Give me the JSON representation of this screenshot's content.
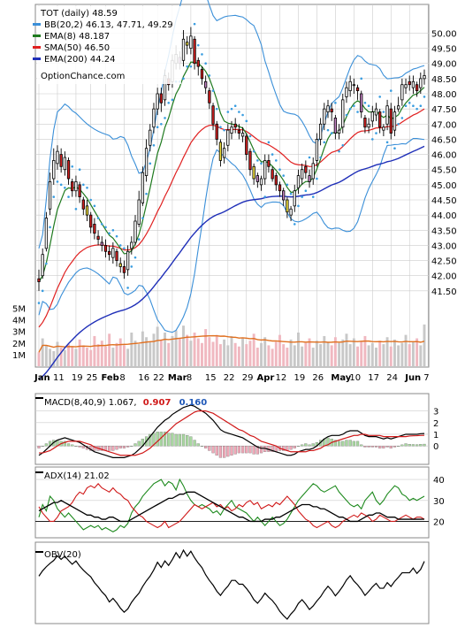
{
  "colors": {
    "bb": "#3a8fd8",
    "ema8": "#1e7a1e",
    "sma50": "#e02020",
    "ema200": "#1f2fb8",
    "sar": "#3a9de0",
    "volume_up": "#c8c8c8",
    "volume_down": "#f0b8c0",
    "volume_avg": "#e07020",
    "candle_up_wick": "#000000",
    "grid": "#cccccc",
    "macd_line": "#000000",
    "macd_signal": "#d01818",
    "macd_hist_pos": "#a8d8a0",
    "macd_hist_neg": "#f0a8b8",
    "adx": "#000000",
    "plus_di": "#1e8a1e",
    "minus_di": "#d01818",
    "obv": "#000000"
  },
  "legend": {
    "title": "TOT (daily) 48.59",
    "bb": "BB(20,2) 46.13, 47.71, 49.29",
    "ema8": "EMA(8) 48.187",
    "sma50": "SMA(50) 46.50",
    "ema200": "EMA(200) 44.24",
    "site": "OptionChance.com"
  },
  "panels": {
    "macd": {
      "label": "MACD(8,40,9) 1.067,",
      "val1": "0.907",
      "val2": "0.160",
      "ticks": [
        "3",
        "2",
        "1",
        "0"
      ],
      "tick_values": [
        3,
        2,
        1,
        0
      ]
    },
    "adx": {
      "label": "ADX(14) 21.02",
      "ticks": [
        "40",
        "30",
        "20"
      ],
      "tick_values": [
        40,
        30,
        20
      ]
    },
    "obv": {
      "label": "OBV(20)"
    }
  },
  "chart_data": {
    "type": "candlestick",
    "title": "TOT (daily) 48.59",
    "price_ylim": [
      41.0,
      50.45
    ],
    "price_ticks": [
      50.0,
      49.5,
      49.0,
      48.5,
      48.0,
      47.5,
      47.0,
      46.5,
      46.0,
      45.5,
      45.0,
      44.5,
      44.0,
      43.5,
      43.0,
      42.5,
      42.0,
      41.5
    ],
    "price_tick_labels": [
      "50.00",
      "49.50",
      "49.00",
      "48.50",
      "48.00",
      "47.50",
      "47.00",
      "46.50",
      "46.00",
      "45.50",
      "45.00",
      "44.50",
      "44.00",
      "43.50",
      "43.00",
      "42.50",
      "42.00",
      "41.50"
    ],
    "volume_tick_labels": [
      "5M",
      "4M",
      "3M",
      "2M",
      "1M"
    ],
    "volume_tick_values": [
      5,
      4,
      3,
      2,
      1
    ],
    "volume_max_millions": 5.8,
    "x_tick_labels": [
      "Jan",
      "11",
      "19",
      "25",
      "Feb",
      "8",
      "16",
      "22",
      "Mar",
      "8",
      "15",
      "22",
      "29",
      "Apr",
      "12",
      "19",
      "26",
      "May",
      "10",
      "17",
      "24",
      "Jun",
      "7"
    ],
    "x_tick_index": [
      0,
      5,
      10,
      14,
      18,
      23,
      28,
      32,
      36,
      41,
      46,
      51,
      56,
      60,
      65,
      70,
      75,
      80,
      85,
      90,
      95,
      100,
      105
    ],
    "close": [
      41.8,
      42.7,
      43.9,
      45.1,
      45.8,
      46.1,
      45.6,
      45.9,
      45.2,
      44.8,
      45.1,
      44.6,
      44.2,
      44.0,
      43.6,
      43.4,
      43.2,
      43.0,
      42.8,
      42.7,
      42.9,
      42.5,
      42.3,
      42.1,
      42.8,
      43.1,
      43.8,
      44.5,
      45.4,
      46.2,
      46.8,
      47.5,
      48.0,
      47.7,
      48.6,
      48.3,
      49.1,
      49.3,
      49.0,
      49.8,
      49.6,
      49.9,
      49.0,
      48.9,
      48.5,
      48.2,
      47.7,
      47.0,
      46.5,
      45.8,
      46.2,
      46.8,
      46.9,
      46.9,
      46.7,
      46.7,
      46.0,
      45.5,
      45.2,
      45.1,
      45.2,
      45.8,
      45.6,
      45.2,
      45.0,
      44.8,
      44.5,
      44.1,
      44.2,
      44.8,
      45.3,
      45.5,
      45.4,
      45.1,
      45.7,
      46.5,
      47.0,
      47.5,
      47.6,
      47.4,
      46.7,
      46.8,
      47.8,
      48.2,
      48.4,
      48.3,
      48.1,
      47.4,
      46.9,
      47.0,
      47.4,
      47.5,
      46.9,
      46.9,
      47.6,
      46.7,
      47.4,
      47.6,
      48.3,
      48.3,
      48.3,
      48.4,
      48.1,
      48.5,
      48.6
    ],
    "open": [
      41.9,
      42.0,
      42.9,
      44.2,
      45.2,
      45.7,
      46.0,
      45.5,
      45.8,
      45.1,
      44.8,
      45.0,
      44.5,
      44.3,
      44.0,
      43.7,
      43.3,
      43.1,
      43.0,
      42.8,
      42.6,
      42.8,
      42.4,
      42.3,
      42.2,
      42.9,
      43.1,
      43.7,
      44.4,
      45.3,
      46.3,
      46.9,
      47.5,
      48.0,
      47.8,
      48.5,
      48.4,
      49.0,
      49.2,
      49.1,
      49.7,
      49.5,
      49.8,
      49.1,
      48.8,
      48.4,
      48.1,
      47.6,
      47.0,
      46.4,
      45.9,
      46.3,
      46.7,
      47.0,
      46.8,
      46.6,
      46.6,
      46.1,
      45.6,
      45.3,
      45.0,
      45.2,
      45.8,
      45.5,
      45.3,
      45.0,
      44.8,
      44.5,
      44.0,
      44.3,
      44.9,
      45.2,
      45.6,
      45.3,
      45.2,
      45.8,
      46.5,
      47.0,
      47.4,
      47.5,
      47.2,
      46.7,
      46.9,
      47.9,
      48.1,
      48.3,
      48.2,
      48.0,
      47.2,
      46.9,
      47.1,
      47.3,
      47.4,
      46.8,
      47.0,
      47.5,
      46.8,
      47.5,
      47.8,
      48.2,
      48.4,
      48.2,
      48.3,
      48.2,
      48.5
    ],
    "high": [
      42.2,
      42.9,
      44.1,
      45.4,
      46.2,
      46.3,
      46.2,
      46.1,
      45.9,
      45.2,
      45.3,
      45.1,
      44.6,
      44.5,
      44.1,
      43.9,
      43.5,
      43.3,
      43.2,
      43.0,
      43.1,
      42.9,
      42.6,
      42.5,
      43.0,
      43.3,
      44.0,
      44.8,
      45.6,
      46.5,
      47.0,
      47.7,
      48.2,
      48.2,
      48.8,
      48.7,
      49.3,
      49.6,
      49.4,
      50.1,
      49.9,
      50.2,
      49.9,
      49.2,
      48.9,
      48.6,
      48.2,
      47.7,
      47.1,
      46.5,
      46.4,
      47.0,
      47.1,
      47.2,
      47.0,
      46.9,
      46.7,
      46.2,
      45.7,
      45.4,
      45.3,
      46.0,
      46.0,
      45.6,
      45.4,
      45.1,
      44.9,
      44.6,
      44.3,
      45.0,
      45.5,
      45.7,
      45.8,
      45.5,
      45.9,
      46.7,
      47.2,
      47.7,
      47.8,
      47.7,
      47.3,
      47.0,
      48.0,
      48.4,
      48.6,
      48.5,
      48.3,
      48.1,
      47.3,
      47.2,
      47.6,
      47.7,
      47.5,
      47.0,
      47.8,
      47.7,
      47.6,
      47.9,
      48.5,
      48.5,
      48.6,
      48.6,
      48.4,
      48.7,
      48.8
    ],
    "low": [
      41.5,
      41.9,
      42.8,
      44.0,
      45.0,
      45.5,
      45.4,
      45.3,
      45.0,
      44.6,
      44.6,
      44.4,
      44.0,
      43.8,
      43.4,
      43.2,
      43.0,
      42.8,
      42.6,
      42.5,
      42.4,
      42.3,
      42.1,
      41.9,
      42.0,
      42.7,
      43.0,
      43.6,
      44.3,
      45.1,
      46.1,
      46.7,
      47.3,
      47.4,
      47.6,
      48.1,
      48.2,
      48.8,
      48.8,
      48.9,
      49.3,
      49.3,
      48.8,
      48.6,
      48.3,
      48.0,
      47.5,
      46.8,
      46.3,
      45.6,
      45.7,
      46.1,
      46.5,
      46.7,
      46.5,
      46.4,
      45.8,
      45.3,
      45.0,
      44.9,
      44.8,
      45.0,
      45.4,
      45.1,
      44.8,
      44.6,
      44.3,
      43.9,
      43.8,
      44.1,
      44.7,
      45.0,
      45.2,
      44.9,
      45.0,
      45.6,
      46.3,
      46.8,
      47.2,
      47.1,
      46.5,
      46.5,
      46.7,
      47.7,
      47.9,
      48.0,
      47.8,
      47.2,
      46.7,
      46.7,
      46.9,
      47.1,
      46.7,
      46.6,
      46.8,
      46.5,
      46.6,
      47.4,
      47.6,
      48.0,
      48.1,
      48.0,
      47.9,
      48.0,
      48.3
    ],
    "volume_millions": [
      1.2,
      2.4,
      1.8,
      1.5,
      1.3,
      2.1,
      1.6,
      1.4,
      1.9,
      1.7,
      1.5,
      2.3,
      1.8,
      1.6,
      1.4,
      2.6,
      1.9,
      2.2,
      1.7,
      2.8,
      1.6,
      2.0,
      2.4,
      1.8,
      1.5,
      2.9,
      2.2,
      1.9,
      3.0,
      2.5,
      2.1,
      2.8,
      3.4,
      2.3,
      2.9,
      2.0,
      2.6,
      3.1,
      2.4,
      3.5,
      2.7,
      2.2,
      2.9,
      2.4,
      2.0,
      3.2,
      2.5,
      2.1,
      2.7,
      1.9,
      2.3,
      1.8,
      2.6,
      2.0,
      1.7,
      2.4,
      1.9,
      2.2,
      2.8,
      1.6,
      2.0,
      2.5,
      1.8,
      1.5,
      2.1,
      2.7,
      1.9,
      1.6,
      2.3,
      1.8,
      2.9,
      1.7,
      2.0,
      2.4,
      1.6,
      2.2,
      1.9,
      2.6,
      2.1,
      1.8,
      2.5,
      2.0,
      2.3,
      2.8,
      1.9,
      2.4,
      1.7,
      2.1,
      2.6,
      1.8,
      2.0,
      1.6,
      2.2,
      1.9,
      2.5,
      1.7,
      2.3,
      1.8,
      2.0,
      2.7,
      1.9,
      2.1,
      2.4,
      1.8,
      3.6
    ],
    "macd": [
      -0.8,
      -0.6,
      -0.3,
      0.0,
      0.3,
      0.5,
      0.6,
      0.7,
      0.6,
      0.5,
      0.4,
      0.3,
      0.1,
      -0.1,
      -0.3,
      -0.5,
      -0.6,
      -0.7,
      -0.8,
      -0.9,
      -1.0,
      -1.0,
      -1.0,
      -1.0,
      -0.9,
      -0.8,
      -0.6,
      -0.3,
      0.0,
      0.4,
      0.8,
      1.2,
      1.6,
      1.9,
      2.2,
      2.4,
      2.7,
      2.9,
      3.1,
      3.3,
      3.4,
      3.5,
      3.4,
      3.2,
      3.0,
      2.8,
      2.5,
      2.2,
      1.8,
      1.4,
      1.2,
      1.1,
      1.0,
      0.9,
      0.8,
      0.7,
      0.5,
      0.3,
      0.1,
      -0.1,
      -0.2,
      -0.2,
      -0.3,
      -0.4,
      -0.5,
      -0.6,
      -0.7,
      -0.8,
      -0.8,
      -0.7,
      -0.5,
      -0.4,
      -0.3,
      -0.3,
      -0.2,
      0.0,
      0.3,
      0.6,
      0.8,
      0.9,
      0.9,
      0.9,
      1.0,
      1.2,
      1.3,
      1.3,
      1.3,
      1.1,
      0.9,
      0.8,
      0.8,
      0.8,
      0.7,
      0.6,
      0.7,
      0.6,
      0.7,
      0.8,
      0.9,
      1.0,
      1.0,
      1.0,
      1.0,
      1.05,
      1.067
    ],
    "macd_signal": [
      -0.6,
      -0.6,
      -0.5,
      -0.4,
      -0.2,
      0.0,
      0.2,
      0.3,
      0.4,
      0.4,
      0.4,
      0.4,
      0.3,
      0.2,
      0.1,
      -0.1,
      -0.2,
      -0.3,
      -0.4,
      -0.5,
      -0.6,
      -0.7,
      -0.8,
      -0.8,
      -0.8,
      -0.8,
      -0.8,
      -0.7,
      -0.6,
      -0.4,
      -0.2,
      0.1,
      0.4,
      0.7,
      1.0,
      1.3,
      1.6,
      1.9,
      2.1,
      2.3,
      2.5,
      2.7,
      2.9,
      3.0,
      3.0,
      3.0,
      2.9,
      2.8,
      2.6,
      2.4,
      2.2,
      2.0,
      1.8,
      1.6,
      1.4,
      1.3,
      1.1,
      0.9,
      0.8,
      0.6,
      0.4,
      0.3,
      0.2,
      0.1,
      0.0,
      -0.2,
      -0.3,
      -0.4,
      -0.5,
      -0.5,
      -0.5,
      -0.5,
      -0.5,
      -0.4,
      -0.4,
      -0.3,
      -0.2,
      0.0,
      0.1,
      0.3,
      0.4,
      0.5,
      0.6,
      0.7,
      0.8,
      0.9,
      0.9,
      1.0,
      1.0,
      0.9,
      0.9,
      0.9,
      0.9,
      0.8,
      0.8,
      0.8,
      0.8,
      0.8,
      0.8,
      0.8,
      0.85,
      0.87,
      0.88,
      0.9,
      0.907
    ],
    "adx": [
      25,
      26,
      27,
      28,
      29,
      29,
      30,
      29,
      28,
      27,
      26,
      25,
      24,
      23,
      23,
      22,
      22,
      21,
      21,
      22,
      22,
      21,
      20,
      20,
      20,
      21,
      22,
      23,
      24,
      25,
      26,
      27,
      28,
      29,
      30,
      31,
      31,
      32,
      33,
      33,
      34,
      34,
      34,
      33,
      32,
      31,
      30,
      29,
      28,
      27,
      26,
      25,
      24,
      23,
      22,
      22,
      21,
      20,
      20,
      20,
      20,
      21,
      21,
      21,
      22,
      22,
      23,
      24,
      25,
      26,
      27,
      28,
      28,
      28,
      27,
      27,
      26,
      26,
      25,
      24,
      23,
      22,
      22,
      21,
      20,
      20,
      20,
      21,
      22,
      23,
      23,
      24,
      24,
      23,
      22,
      22,
      22,
      21,
      21,
      21,
      21,
      21,
      21,
      21,
      21.02
    ],
    "plus_di": [
      22,
      28,
      25,
      32,
      30,
      26,
      24,
      22,
      24,
      22,
      20,
      18,
      16,
      17,
      18,
      17,
      18,
      16,
      17,
      16,
      15,
      16,
      18,
      17,
      19,
      24,
      27,
      29,
      32,
      34,
      36,
      38,
      39,
      40,
      37,
      39,
      38,
      35,
      40,
      37,
      33,
      30,
      28,
      27,
      28,
      27,
      26,
      24,
      25,
      23,
      26,
      28,
      30,
      27,
      26,
      25,
      24,
      22,
      20,
      22,
      20,
      18,
      20,
      22,
      20,
      18,
      19,
      21,
      24,
      27,
      30,
      32,
      34,
      36,
      38,
      37,
      35,
      34,
      35,
      36,
      37,
      34,
      32,
      30,
      28,
      27,
      28,
      26,
      30,
      32,
      34,
      30,
      28,
      30,
      33,
      35,
      37,
      36,
      33,
      32,
      30,
      31,
      30,
      31,
      32
    ],
    "minus_di": [
      27,
      24,
      22,
      20,
      20,
      22,
      25,
      26,
      27,
      29,
      32,
      34,
      33,
      36,
      37,
      36,
      38,
      36,
      35,
      34,
      36,
      34,
      33,
      31,
      30,
      27,
      25,
      23,
      22,
      20,
      19,
      18,
      17,
      18,
      20,
      17,
      18,
      19,
      20,
      22,
      24,
      26,
      28,
      27,
      26,
      27,
      28,
      29,
      27,
      28,
      26,
      27,
      25,
      26,
      28,
      27,
      29,
      30,
      28,
      29,
      26,
      27,
      28,
      27,
      29,
      28,
      30,
      32,
      30,
      28,
      25,
      23,
      21,
      20,
      18,
      17,
      18,
      19,
      20,
      18,
      17,
      18,
      20,
      21,
      22,
      23,
      22,
      24,
      23,
      22,
      20,
      21,
      23,
      22,
      21,
      20,
      20,
      21,
      22,
      23,
      22,
      21,
      22,
      22,
      21
    ]
  }
}
